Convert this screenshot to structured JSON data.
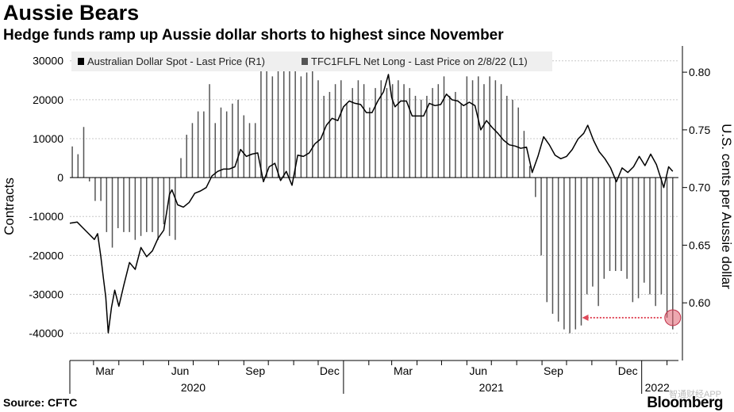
{
  "header": {
    "title": "Aussie Bears",
    "subtitle": "Hedge funds ramp up Aussie dollar shorts to highest since November"
  },
  "footer": {
    "source": "Source: CFTC",
    "brand": "Bloomberg",
    "watermark": "智通财经APP"
  },
  "chart_data": {
    "type": "bar+line",
    "title": "Aussie Bears",
    "subtitle": "Hedge funds ramp up Aussie dollar shorts to highest since November",
    "legend_position": "top-left",
    "legend": [
      {
        "label": "Australian Dollar Spot - Last Price (R1)",
        "color": "#000000"
      },
      {
        "label": "TFC1FLFL Net Long - Last Price on 2/8/22 (L1)",
        "color": "#555555"
      }
    ],
    "left_axis": {
      "label": "Contracts",
      "min": -47000,
      "max": 33000,
      "ticks": [
        30000,
        20000,
        10000,
        0,
        -10000,
        -20000,
        -30000,
        -40000
      ],
      "tick_labels": [
        "30000",
        "20000",
        "10000",
        "0",
        "-10000",
        "-20000",
        "-30000",
        "-40000"
      ]
    },
    "right_axis": {
      "label": "U.S. cents per Aussie dollar",
      "min": 0.55,
      "max": 0.82,
      "ticks": [
        0.8,
        0.75,
        0.7,
        0.65,
        0.6
      ],
      "tick_labels": [
        "0.80",
        "0.75",
        "0.70",
        "0.65",
        "0.60"
      ]
    },
    "grid": "horizontal dashed",
    "x_axis": {
      "start": "2020-02-01",
      "end": "2022-02-15",
      "months": [
        {
          "label": "Mar",
          "date": "2020-03-15"
        },
        {
          "label": "Jun",
          "date": "2020-06-15"
        },
        {
          "label": "Sep",
          "date": "2020-09-15"
        },
        {
          "label": "Dec",
          "date": "2020-12-15"
        },
        {
          "label": "Mar",
          "date": "2021-03-15"
        },
        {
          "label": "Jun",
          "date": "2021-06-15"
        },
        {
          "label": "Sep",
          "date": "2021-09-15"
        },
        {
          "label": "Dec",
          "date": "2021-12-15"
        }
      ],
      "years": [
        {
          "label": "2020",
          "date": "2020-07-01"
        },
        {
          "label": "2021",
          "date": "2021-07-01"
        },
        {
          "label": "2022",
          "date": "2022-01-20"
        }
      ]
    },
    "series": [
      {
        "name": "TFC1FLFL Net Long - Last Price on 2/8/22 (L1)",
        "kind": "bar",
        "axis": "left",
        "color": "#555555",
        "points": [
          [
            "2020-02-04",
            8000
          ],
          [
            "2020-02-11",
            6000
          ],
          [
            "2020-02-18",
            13000
          ],
          [
            "2020-02-25",
            -1000
          ],
          [
            "2020-03-03",
            -6000
          ],
          [
            "2020-03-10",
            -6000
          ],
          [
            "2020-03-17",
            -14000
          ],
          [
            "2020-03-24",
            -18000
          ],
          [
            "2020-03-31",
            -13000
          ],
          [
            "2020-04-07",
            -14000
          ],
          [
            "2020-04-14",
            -14000
          ],
          [
            "2020-04-21",
            -16000
          ],
          [
            "2020-04-28",
            -15000
          ],
          [
            "2020-05-05",
            -14000
          ],
          [
            "2020-05-12",
            -14000
          ],
          [
            "2020-05-19",
            -16000
          ],
          [
            "2020-05-26",
            -12000
          ],
          [
            "2020-06-02",
            -15000
          ],
          [
            "2020-06-09",
            -16000
          ],
          [
            "2020-06-16",
            5000
          ],
          [
            "2020-06-23",
            11000
          ],
          [
            "2020-06-30",
            14000
          ],
          [
            "2020-07-07",
            17000
          ],
          [
            "2020-07-14",
            17000
          ],
          [
            "2020-07-21",
            24000
          ],
          [
            "2020-07-28",
            14000
          ],
          [
            "2020-08-04",
            18000
          ],
          [
            "2020-08-11",
            17000
          ],
          [
            "2020-08-18",
            19000
          ],
          [
            "2020-08-25",
            20000
          ],
          [
            "2020-09-01",
            16000
          ],
          [
            "2020-09-08",
            14000
          ],
          [
            "2020-09-15",
            14000
          ],
          [
            "2020-09-22",
            28000
          ],
          [
            "2020-09-29",
            29000
          ],
          [
            "2020-10-06",
            26000
          ],
          [
            "2020-10-13",
            30000
          ],
          [
            "2020-10-20",
            29000
          ],
          [
            "2020-10-27",
            28000
          ],
          [
            "2020-11-03",
            30000
          ],
          [
            "2020-11-10",
            26000
          ],
          [
            "2020-11-17",
            27000
          ],
          [
            "2020-11-24",
            30000
          ],
          [
            "2020-12-01",
            25000
          ],
          [
            "2020-12-08",
            21000
          ],
          [
            "2020-12-15",
            22000
          ],
          [
            "2020-12-22",
            24000
          ],
          [
            "2020-12-29",
            25000
          ],
          [
            "2021-01-05",
            19000
          ],
          [
            "2021-01-12",
            23000
          ],
          [
            "2021-01-19",
            25000
          ],
          [
            "2021-01-26",
            24000
          ],
          [
            "2021-02-02",
            18000
          ],
          [
            "2021-02-09",
            23000
          ],
          [
            "2021-02-16",
            25000
          ],
          [
            "2021-02-23",
            23000
          ],
          [
            "2021-03-02",
            24000
          ],
          [
            "2021-03-09",
            25000
          ],
          [
            "2021-03-16",
            24000
          ],
          [
            "2021-03-23",
            23000
          ],
          [
            "2021-03-30",
            21000
          ],
          [
            "2021-04-06",
            20000
          ],
          [
            "2021-04-13",
            21000
          ],
          [
            "2021-04-20",
            23000
          ],
          [
            "2021-04-27",
            24000
          ],
          [
            "2021-05-04",
            26000
          ],
          [
            "2021-05-11",
            21000
          ],
          [
            "2021-05-18",
            22000
          ],
          [
            "2021-05-25",
            19000
          ],
          [
            "2021-06-01",
            26000
          ],
          [
            "2021-06-08",
            25000
          ],
          [
            "2021-06-15",
            26000
          ],
          [
            "2021-06-22",
            24000
          ],
          [
            "2021-06-29",
            26000
          ],
          [
            "2021-07-06",
            25000
          ],
          [
            "2021-07-13",
            24000
          ],
          [
            "2021-07-20",
            21000
          ],
          [
            "2021-07-27",
            20000
          ],
          [
            "2021-08-03",
            18000
          ],
          [
            "2021-08-10",
            12000
          ],
          [
            "2021-08-17",
            3000
          ],
          [
            "2021-08-24",
            -5000
          ],
          [
            "2021-08-31",
            -20000
          ],
          [
            "2021-09-07",
            -32000
          ],
          [
            "2021-09-14",
            -35000
          ],
          [
            "2021-09-21",
            -37000
          ],
          [
            "2021-09-28",
            -39000
          ],
          [
            "2021-10-05",
            -40000
          ],
          [
            "2021-10-12",
            -39000
          ],
          [
            "2021-10-19",
            -38000
          ],
          [
            "2021-10-26",
            -30000
          ],
          [
            "2021-11-02",
            -28000
          ],
          [
            "2021-11-09",
            -33000
          ],
          [
            "2021-11-16",
            -26000
          ],
          [
            "2021-11-23",
            -24000
          ],
          [
            "2021-11-30",
            -24000
          ],
          [
            "2021-12-07",
            -24000
          ],
          [
            "2021-12-14",
            -26000
          ],
          [
            "2021-12-21",
            -32000
          ],
          [
            "2021-12-28",
            -31000
          ],
          [
            "2022-01-04",
            -27000
          ],
          [
            "2022-01-11",
            -30000
          ],
          [
            "2022-01-18",
            -33000
          ],
          [
            "2022-01-25",
            -30000
          ],
          [
            "2022-02-01",
            -36000
          ],
          [
            "2022-02-08",
            -39000
          ]
        ]
      },
      {
        "name": "Australian Dollar Spot - Last Price (R1)",
        "kind": "line",
        "axis": "right",
        "color": "#000000",
        "points": [
          [
            "2020-02-01",
            0.669
          ],
          [
            "2020-02-10",
            0.67
          ],
          [
            "2020-02-17",
            0.665
          ],
          [
            "2020-02-24",
            0.66
          ],
          [
            "2020-03-02",
            0.655
          ],
          [
            "2020-03-06",
            0.66
          ],
          [
            "2020-03-10",
            0.64
          ],
          [
            "2020-03-13",
            0.622
          ],
          [
            "2020-03-16",
            0.605
          ],
          [
            "2020-03-19",
            0.574
          ],
          [
            "2020-03-23",
            0.596
          ],
          [
            "2020-03-27",
            0.611
          ],
          [
            "2020-04-01",
            0.597
          ],
          [
            "2020-04-07",
            0.615
          ],
          [
            "2020-04-14",
            0.635
          ],
          [
            "2020-04-21",
            0.629
          ],
          [
            "2020-04-28",
            0.648
          ],
          [
            "2020-05-05",
            0.64
          ],
          [
            "2020-05-12",
            0.645
          ],
          [
            "2020-05-19",
            0.656
          ],
          [
            "2020-05-26",
            0.663
          ],
          [
            "2020-06-02",
            0.694
          ],
          [
            "2020-06-05",
            0.698
          ],
          [
            "2020-06-12",
            0.685
          ],
          [
            "2020-06-19",
            0.683
          ],
          [
            "2020-06-26",
            0.687
          ],
          [
            "2020-07-03",
            0.695
          ],
          [
            "2020-07-10",
            0.697
          ],
          [
            "2020-07-17",
            0.7
          ],
          [
            "2020-07-24",
            0.71
          ],
          [
            "2020-07-31",
            0.714
          ],
          [
            "2020-08-07",
            0.716
          ],
          [
            "2020-08-14",
            0.716
          ],
          [
            "2020-08-21",
            0.718
          ],
          [
            "2020-08-28",
            0.733
          ],
          [
            "2020-09-04",
            0.727
          ],
          [
            "2020-09-11",
            0.729
          ],
          [
            "2020-09-18",
            0.73
          ],
          [
            "2020-09-25",
            0.705
          ],
          [
            "2020-10-02",
            0.718
          ],
          [
            "2020-10-09",
            0.721
          ],
          [
            "2020-10-16",
            0.706
          ],
          [
            "2020-10-23",
            0.714
          ],
          [
            "2020-10-30",
            0.702
          ],
          [
            "2020-11-06",
            0.728
          ],
          [
            "2020-11-13",
            0.727
          ],
          [
            "2020-11-20",
            0.73
          ],
          [
            "2020-11-27",
            0.738
          ],
          [
            "2020-12-04",
            0.742
          ],
          [
            "2020-12-11",
            0.754
          ],
          [
            "2020-12-18",
            0.76
          ],
          [
            "2020-12-25",
            0.758
          ],
          [
            "2021-01-01",
            0.77
          ],
          [
            "2021-01-08",
            0.775
          ],
          [
            "2021-01-15",
            0.773
          ],
          [
            "2021-01-22",
            0.772
          ],
          [
            "2021-01-29",
            0.765
          ],
          [
            "2021-02-05",
            0.765
          ],
          [
            "2021-02-12",
            0.775
          ],
          [
            "2021-02-19",
            0.783
          ],
          [
            "2021-02-25",
            0.798
          ],
          [
            "2021-03-01",
            0.778
          ],
          [
            "2021-03-05",
            0.77
          ],
          [
            "2021-03-12",
            0.775
          ],
          [
            "2021-03-19",
            0.775
          ],
          [
            "2021-03-26",
            0.762
          ],
          [
            "2021-04-02",
            0.762
          ],
          [
            "2021-04-09",
            0.762
          ],
          [
            "2021-04-16",
            0.773
          ],
          [
            "2021-04-23",
            0.771
          ],
          [
            "2021-04-30",
            0.772
          ],
          [
            "2021-05-07",
            0.781
          ],
          [
            "2021-05-14",
            0.776
          ],
          [
            "2021-05-21",
            0.775
          ],
          [
            "2021-05-28",
            0.771
          ],
          [
            "2021-06-04",
            0.774
          ],
          [
            "2021-06-11",
            0.771
          ],
          [
            "2021-06-18",
            0.75
          ],
          [
            "2021-06-25",
            0.758
          ],
          [
            "2021-07-02",
            0.752
          ],
          [
            "2021-07-09",
            0.747
          ],
          [
            "2021-07-16",
            0.741
          ],
          [
            "2021-07-23",
            0.737
          ],
          [
            "2021-07-30",
            0.736
          ],
          [
            "2021-08-06",
            0.734
          ],
          [
            "2021-08-13",
            0.735
          ],
          [
            "2021-08-20",
            0.713
          ],
          [
            "2021-08-27",
            0.727
          ],
          [
            "2021-09-03",
            0.744
          ],
          [
            "2021-09-10",
            0.737
          ],
          [
            "2021-09-17",
            0.728
          ],
          [
            "2021-09-24",
            0.725
          ],
          [
            "2021-10-01",
            0.727
          ],
          [
            "2021-10-08",
            0.733
          ],
          [
            "2021-10-15",
            0.742
          ],
          [
            "2021-10-22",
            0.747
          ],
          [
            "2021-10-27",
            0.754
          ],
          [
            "2021-11-03",
            0.741
          ],
          [
            "2021-11-10",
            0.731
          ],
          [
            "2021-11-17",
            0.725
          ],
          [
            "2021-11-24",
            0.717
          ],
          [
            "2021-12-01",
            0.705
          ],
          [
            "2021-12-08",
            0.717
          ],
          [
            "2021-12-15",
            0.713
          ],
          [
            "2021-12-22",
            0.718
          ],
          [
            "2021-12-29",
            0.727
          ],
          [
            "2022-01-05",
            0.719
          ],
          [
            "2022-01-12",
            0.729
          ],
          [
            "2022-01-19",
            0.72
          ],
          [
            "2022-01-28",
            0.7
          ],
          [
            "2022-02-03",
            0.718
          ],
          [
            "2022-02-08",
            0.714
          ]
        ]
      }
    ],
    "highlight": {
      "date": "2022-02-08",
      "value": -36000,
      "color": "#e06070"
    },
    "highlight_arrow": {
      "from_date": "2022-02-08",
      "to_date": "2021-10-20",
      "value": -36000,
      "color": "#e04a5a"
    }
  }
}
